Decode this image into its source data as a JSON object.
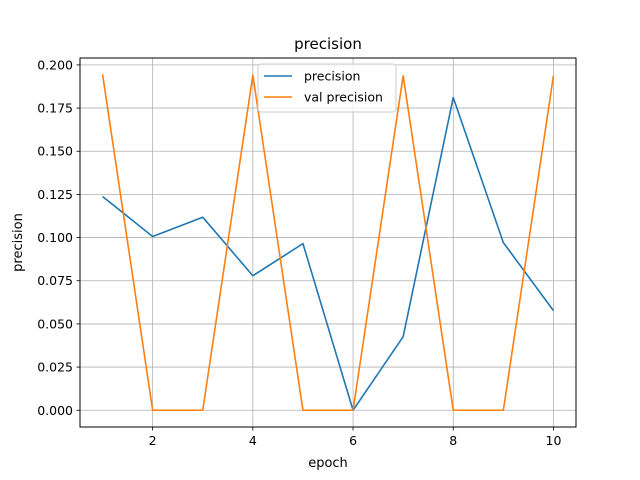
{
  "chart_data": {
    "type": "line",
    "title": "precision",
    "xlabel": "epoch",
    "ylabel": "precision",
    "xlim": [
      0.55,
      10.45
    ],
    "ylim": [
      -0.0097,
      0.204
    ],
    "xticks": [
      2,
      4,
      6,
      8,
      10
    ],
    "xtick_labels": [
      "2",
      "4",
      "6",
      "8",
      "10"
    ],
    "yticks": [
      0.0,
      0.025,
      0.05,
      0.075,
      0.1,
      0.125,
      0.15,
      0.175,
      0.2
    ],
    "ytick_labels": [
      "0.000",
      "0.025",
      "0.050",
      "0.075",
      "0.100",
      "0.125",
      "0.150",
      "0.175",
      "0.200"
    ],
    "grid": true,
    "legend_position": "upper center",
    "x": [
      1,
      2,
      3,
      4,
      5,
      6,
      7,
      8,
      9,
      10
    ],
    "series": [
      {
        "name": "precision",
        "color": "#1f77b4",
        "values": [
          0.1238,
          0.1006,
          0.1118,
          0.0779,
          0.0965,
          0.0,
          0.0426,
          0.1811,
          0.0971,
          0.0577
        ]
      },
      {
        "name": "val precision",
        "color": "#ff7f0e",
        "values": [
          0.1946,
          0.0,
          0.0,
          0.194,
          0.0,
          0.0,
          0.1937,
          0.0,
          0.0,
          0.1937
        ]
      }
    ]
  }
}
